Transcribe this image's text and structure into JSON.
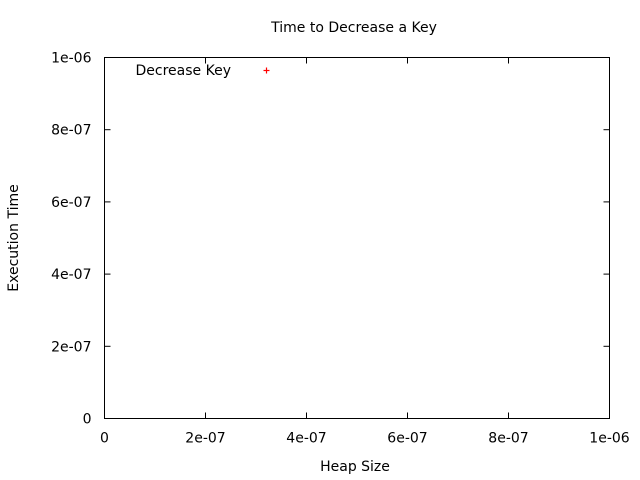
{
  "chart_data": {
    "type": "scatter",
    "title": "Time to Decrease a Key",
    "xlabel": "Heap Size",
    "ylabel": "Execution Time",
    "xlim": [
      0,
      1e-06
    ],
    "ylim": [
      0,
      1e-06
    ],
    "grid": false,
    "legend_position": "top-left",
    "x_ticks": [
      {
        "value": 0,
        "label": "0"
      },
      {
        "value": 2e-07,
        "label": "2e-07"
      },
      {
        "value": 4e-07,
        "label": "4e-07"
      },
      {
        "value": 6e-07,
        "label": "6e-07"
      },
      {
        "value": 8e-07,
        "label": "8e-07"
      },
      {
        "value": 1e-06,
        "label": "1e-06"
      }
    ],
    "y_ticks": [
      {
        "value": 0,
        "label": "0"
      },
      {
        "value": 2e-07,
        "label": "2e-07"
      },
      {
        "value": 4e-07,
        "label": "4e-07"
      },
      {
        "value": 6e-07,
        "label": "6e-07"
      },
      {
        "value": 8e-07,
        "label": "8e-07"
      },
      {
        "value": 1e-06,
        "label": "1e-06"
      }
    ],
    "series": [
      {
        "name": "Decrease Key",
        "color": "#ff0000",
        "marker": "plus",
        "points": []
      }
    ]
  }
}
